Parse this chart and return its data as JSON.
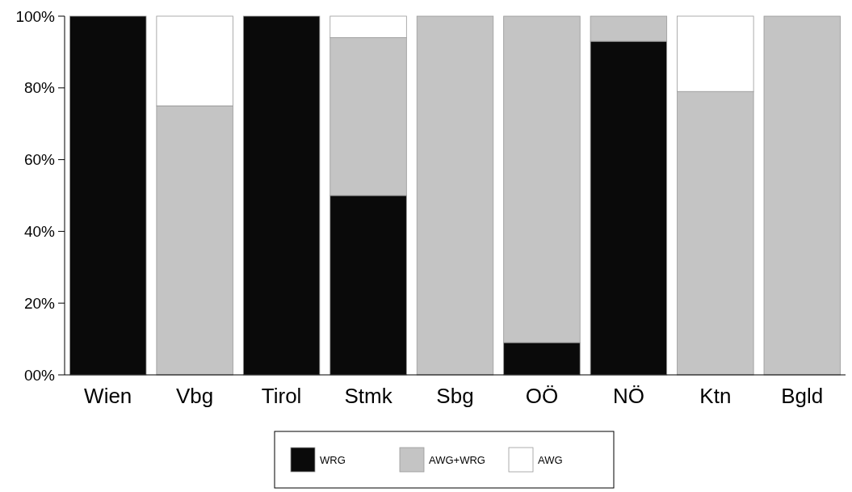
{
  "chart_data": {
    "type": "bar",
    "stacked": true,
    "categories": [
      "Wien",
      "Vbg",
      "Tirol",
      "Stmk",
      "Sbg",
      "OÖ",
      "NÖ",
      "Ktn",
      "Bgld"
    ],
    "series": [
      {
        "name": "WRG",
        "color": "#0a0a0a",
        "values": [
          100,
          0,
          100,
          50,
          0,
          9,
          93,
          0,
          0
        ]
      },
      {
        "name": "AWG+WRG",
        "color": "#c4c4c4",
        "values": [
          0,
          75,
          0,
          44,
          100,
          91,
          7,
          79,
          100
        ]
      },
      {
        "name": "AWG",
        "color": "#ffffff",
        "values": [
          0,
          25,
          0,
          6,
          0,
          0,
          0,
          21,
          0
        ]
      }
    ],
    "ylim": [
      0,
      100
    ],
    "yticks": [
      {
        "value": 0,
        "label": "00%"
      },
      {
        "value": 20,
        "label": "20%"
      },
      {
        "value": 40,
        "label": "40%"
      },
      {
        "value": 60,
        "label": "60%"
      },
      {
        "value": 80,
        "label": "80%"
      },
      {
        "value": 100,
        "label": "100%"
      }
    ],
    "legend": "bottom"
  }
}
